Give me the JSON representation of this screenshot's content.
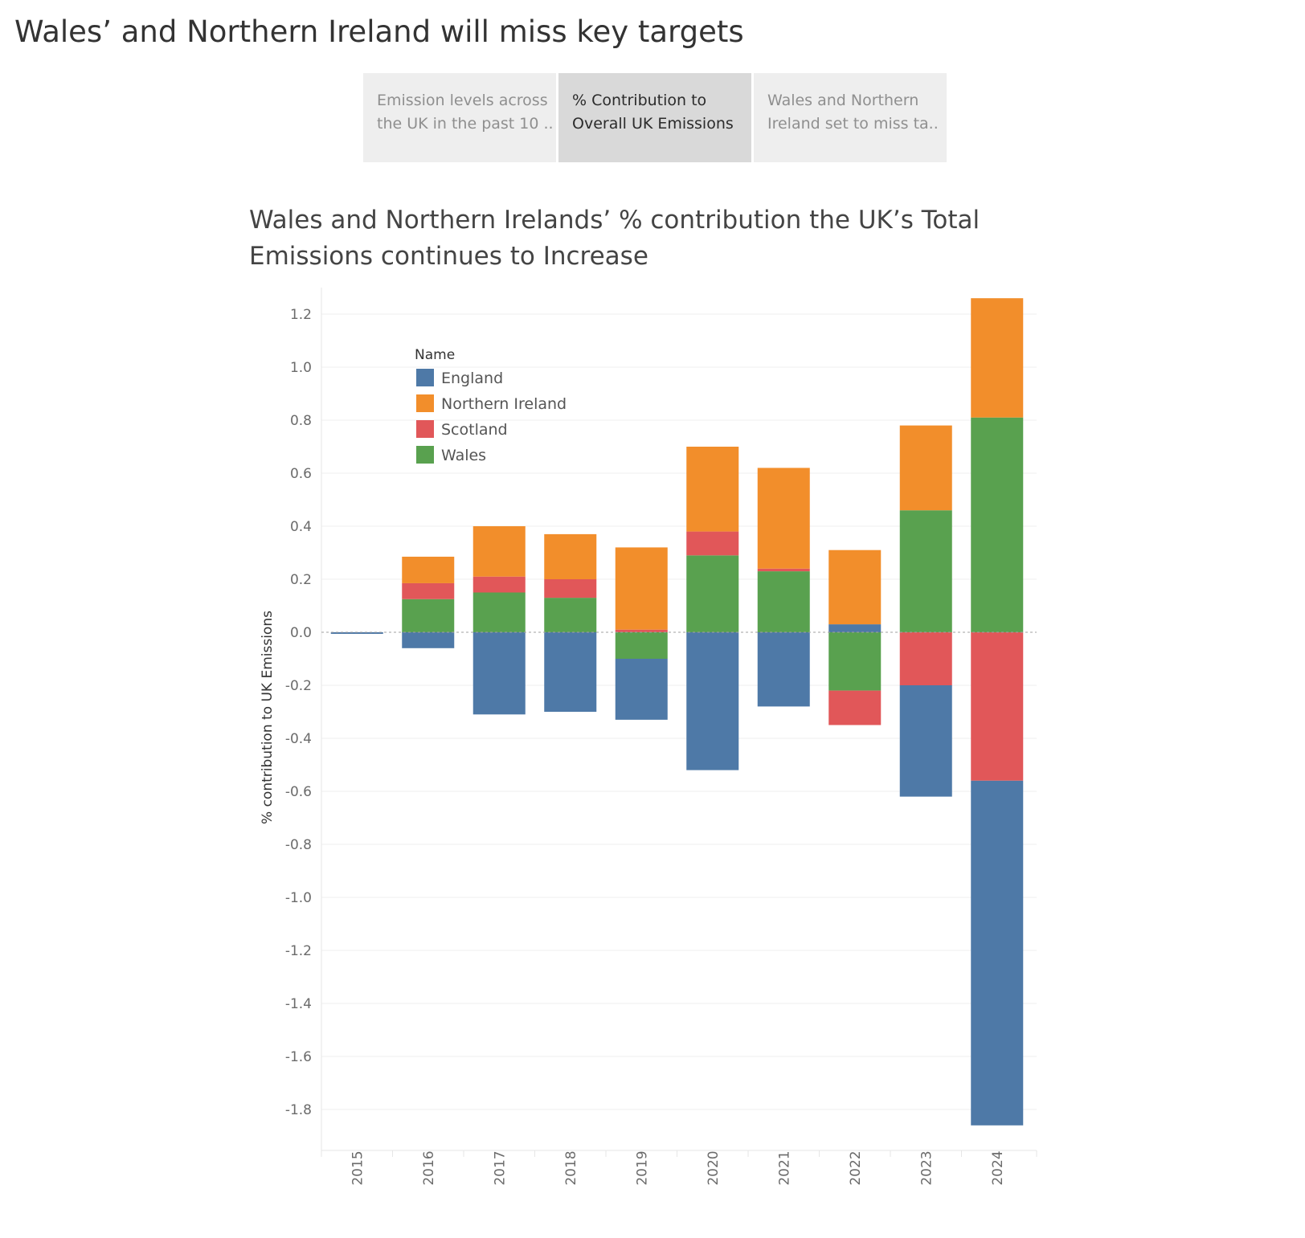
{
  "story": {
    "title": "Wales’ and Northern Ireland will miss key targets",
    "tabs": [
      {
        "line1": "Emission levels across",
        "line2": "the UK in the past 10 ..",
        "active": false
      },
      {
        "line1": "% Contribution to",
        "line2": "Overall UK Emissions",
        "active": true
      },
      {
        "line1": "Wales and Northern",
        "line2": "Ireland set to miss ta..",
        "active": false
      }
    ]
  },
  "colors": {
    "England": "#4e79a7",
    "Northern Ireland": "#f28e2b",
    "Scotland": "#e15759",
    "Wales": "#59a14f"
  },
  "chart_data": {
    "type": "bar",
    "stacked": "diverging",
    "title_line1": "Wales and Northern Irelands’ % contribution the UK’s Total",
    "title_line2": "Emissions continues to Increase",
    "xlabel": "",
    "ylabel": "% contribution to UK Emissions",
    "ylim": [
      -1.91,
      1.29
    ],
    "yticks": [
      "1.2",
      "1.0",
      "0.8",
      "0.6",
      "0.4",
      "0.2",
      "0.0",
      "-0.2",
      "-0.4",
      "-0.6",
      "-0.8",
      "-1.0",
      "-1.2",
      "-1.4",
      "-1.6",
      "-1.8"
    ],
    "ytick_values": [
      1.2,
      1.0,
      0.8,
      0.6,
      0.4,
      0.2,
      0.0,
      -0.2,
      -0.4,
      -0.6,
      -0.8,
      -1.0,
      -1.2,
      -1.4,
      -1.6,
      -1.8
    ],
    "grid": true,
    "zero_line": "dashed",
    "legend": {
      "title": "Name",
      "position": "top-left"
    },
    "categories": [
      "2015",
      "2016",
      "2017",
      "2018",
      "2019",
      "2020",
      "2021",
      "2022",
      "2023",
      "2024"
    ],
    "series": [
      {
        "name": "England",
        "values": [
          -0.005,
          -0.06,
          -0.31,
          -0.3,
          -0.23,
          -0.52,
          -0.28,
          0.03,
          -0.42,
          -1.3
        ]
      },
      {
        "name": "Northern Ireland",
        "values": [
          0,
          0.1,
          0.19,
          0.17,
          0.31,
          0.32,
          0.38,
          0.28,
          0.32,
          0.45
        ]
      },
      {
        "name": "Scotland",
        "values": [
          0,
          0.06,
          0.06,
          0.07,
          0.01,
          0.09,
          0.01,
          -0.13,
          -0.2,
          -0.56
        ]
      },
      {
        "name": "Wales",
        "values": [
          0,
          0.125,
          0.15,
          0.13,
          -0.1,
          0.29,
          0.23,
          -0.22,
          0.46,
          0.81
        ]
      }
    ],
    "stack_order_positive": [
      "England",
      "Wales",
      "Scotland",
      "Northern Ireland"
    ],
    "stack_order_negative": [
      "Wales",
      "Scotland",
      "England"
    ]
  }
}
